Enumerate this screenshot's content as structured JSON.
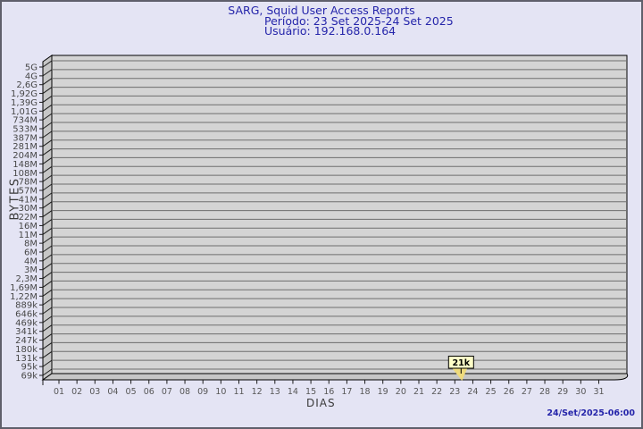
{
  "header": {
    "title": "SARG, Squid User Access Reports",
    "period": "Período: 23 Set 2025-24 Set 2025",
    "user": "Usuário: 192.168.0.164"
  },
  "footer": {
    "timestamp": "24/Set/2025-06:00"
  },
  "chart_data": {
    "type": "bar",
    "title": "SARG, Squid User Access Reports",
    "subtitle_period": "Período: 23 Set 2025-24 Set 2025",
    "subtitle_user": "Usuário: 192.168.0.164",
    "xlabel": "DIAS",
    "ylabel": "BYTES",
    "legend_position": "none",
    "grid": true,
    "y_axis": {
      "scale": "log",
      "tick_labels": [
        "5G",
        "4G",
        "2,6G",
        "1,92G",
        "1,39G",
        "1,01G",
        "734M",
        "533M",
        "387M",
        "281M",
        "204M",
        "148M",
        "108M",
        "78M",
        "57M",
        "41M",
        "30M",
        "22M",
        "16M",
        "11M",
        "8M",
        "6M",
        "4M",
        "3M",
        "2,3M",
        "1,69M",
        "1,22M",
        "889k",
        "646k",
        "469k",
        "341k",
        "247k",
        "180k",
        "131k",
        "95k",
        "69k"
      ]
    },
    "x_axis": {
      "tick_labels": [
        "01",
        "02",
        "03",
        "04",
        "05",
        "06",
        "07",
        "08",
        "09",
        "10",
        "11",
        "12",
        "13",
        "14",
        "15",
        "16",
        "17",
        "18",
        "19",
        "20",
        "21",
        "22",
        "23",
        "24",
        "25",
        "26",
        "27",
        "28",
        "29",
        "30",
        "31"
      ]
    },
    "data_points": [
      {
        "x": "23",
        "label": "21k"
      }
    ]
  },
  "colors": {
    "background": "#e4e4f4",
    "frame_border": "#5f5f6b",
    "title_text": "#2525aa",
    "plot_fill": "#d4d4d4",
    "wall_fill": "#c6c6c6",
    "grid_line": "#6e6e6e",
    "axis_line": "#000000",
    "tick_line": "#1c1c1c",
    "y_tick_text": "#474747",
    "x_tick_text": "#575757",
    "axis_title_text": "#3a3a3a",
    "flag_fill": "#ffffc8",
    "flag_border": "#000000",
    "flag_arrow": "#eeda7c",
    "timestamp_text": "#2525aa"
  }
}
